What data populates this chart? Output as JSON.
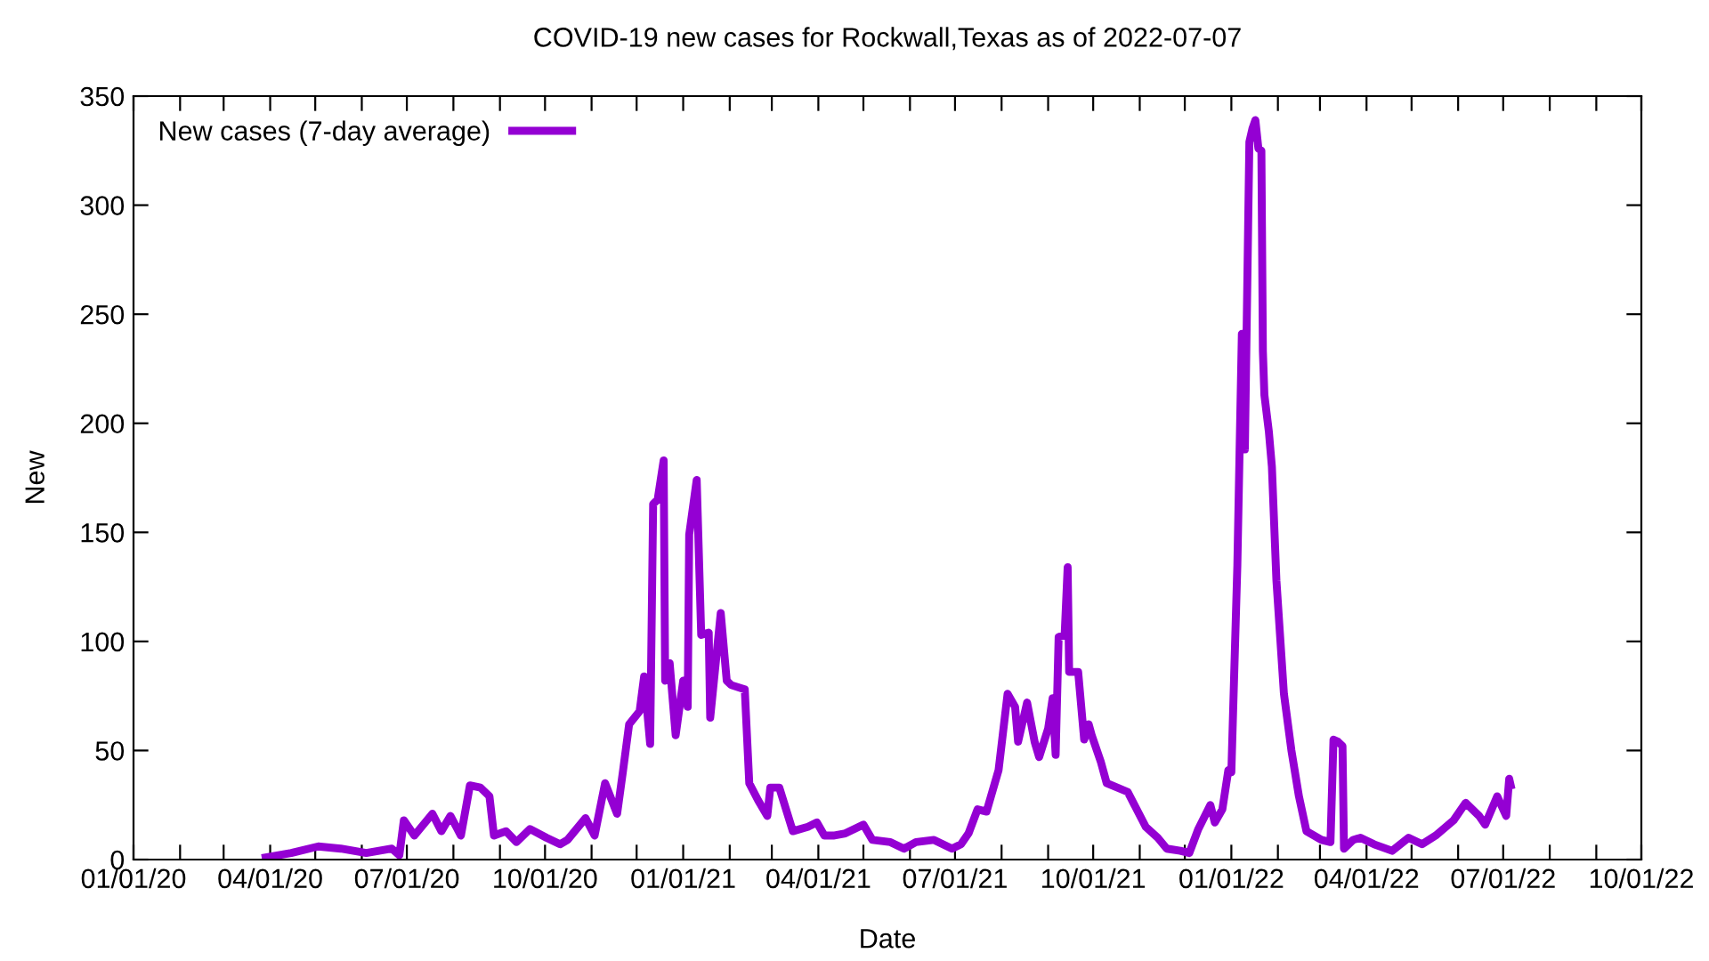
{
  "chart_data": {
    "type": "line",
    "title": "COVID-19 new cases for Rockwall,Texas as of 2022-07-07",
    "xlabel": "Date",
    "ylabel": "New",
    "x": [
      "2020-03-29",
      "2020-04-15",
      "2020-05-03",
      "2020-05-18",
      "2020-06-04",
      "2020-06-21",
      "2020-06-26",
      "2020-06-29",
      "2020-07-06",
      "2020-07-18",
      "2020-07-24",
      "2020-07-30",
      "2020-08-06",
      "2020-08-12",
      "2020-08-19",
      "2020-08-25",
      "2020-08-28",
      "2020-09-05",
      "2020-09-12",
      "2020-09-21",
      "2020-10-02",
      "2020-10-11",
      "2020-10-16",
      "2020-10-28",
      "2020-11-03",
      "2020-11-10",
      "2020-11-18",
      "2020-11-22",
      "2020-11-26",
      "2020-12-03",
      "2020-12-06",
      "2020-12-10",
      "2020-12-12",
      "2020-12-15",
      "2020-12-19",
      "2020-12-20",
      "2020-12-23",
      "2020-12-27",
      "2021-01-01",
      "2021-01-04",
      "2021-01-05",
      "2021-01-10",
      "2021-01-13",
      "2021-01-18",
      "2021-01-19",
      "2021-01-26",
      "2021-01-30",
      "2021-02-02",
      "2021-02-11",
      "2021-02-14",
      "2021-02-20",
      "2021-02-26",
      "2021-02-28",
      "2021-03-06",
      "2021-03-15",
      "2021-03-25",
      "2021-03-31",
      "2021-04-05",
      "2021-04-11",
      "2021-04-19",
      "2021-05-01",
      "2021-05-07",
      "2021-05-19",
      "2021-05-28",
      "2021-06-05",
      "2021-06-17",
      "2021-06-29",
      "2021-07-05",
      "2021-07-10",
      "2021-07-16",
      "2021-07-22",
      "2021-07-30",
      "2021-08-05",
      "2021-08-10",
      "2021-08-12",
      "2021-08-18",
      "2021-08-23",
      "2021-08-26",
      "2021-09-01",
      "2021-09-04",
      "2021-09-06",
      "2021-09-08",
      "2021-09-12",
      "2021-09-14",
      "2021-09-15",
      "2021-09-21",
      "2021-09-25",
      "2021-09-28",
      "2021-09-30",
      "2021-10-06",
      "2021-10-10",
      "2021-10-24",
      "2021-11-05",
      "2021-11-13",
      "2021-11-19",
      "2021-11-28",
      "2021-12-04",
      "2021-12-10",
      "2021-12-18",
      "2021-12-21",
      "2021-12-26",
      "2021-12-30",
      "2022-01-01",
      "2022-01-05",
      "2022-01-08",
      "2022-01-10",
      "2022-01-13",
      "2022-01-15",
      "2022-01-17",
      "2022-01-19",
      "2022-01-21",
      "2022-01-22",
      "2022-01-23",
      "2022-01-26",
      "2022-01-28",
      "2022-01-31",
      "2022-02-05",
      "2022-02-10",
      "2022-02-15",
      "2022-02-20",
      "2022-03-02",
      "2022-03-08",
      "2022-03-10",
      "2022-03-13",
      "2022-03-16",
      "2022-03-17",
      "2022-03-23",
      "2022-03-28",
      "2022-04-06",
      "2022-04-18",
      "2022-04-29",
      "2022-05-08",
      "2022-05-17",
      "2022-05-29",
      "2022-06-06",
      "2022-06-15",
      "2022-06-19",
      "2022-06-27",
      "2022-07-03",
      "2022-07-05",
      "2022-07-06"
    ],
    "series": [
      {
        "name": "New cases (7-day average)",
        "color": "#9400d3",
        "values": [
          1,
          3,
          6,
          5,
          3,
          5,
          2,
          18,
          11,
          21,
          13,
          20,
          11,
          34,
          33,
          29,
          11,
          13,
          8,
          14,
          10,
          7,
          9,
          19,
          11,
          35,
          21,
          41,
          62,
          68,
          84,
          53,
          163,
          165,
          183,
          82,
          90,
          57,
          82,
          70,
          149,
          174,
          103,
          104,
          65,
          113,
          82,
          80,
          78,
          35,
          27,
          20,
          33,
          33,
          13,
          15,
          17,
          11,
          11,
          12,
          16,
          9,
          8,
          5,
          8,
          9,
          5,
          7,
          12,
          23,
          22,
          41,
          76,
          70,
          54,
          72,
          54,
          47,
          60,
          74,
          48,
          102,
          103,
          134,
          86,
          86,
          55,
          62,
          57,
          45,
          35,
          31,
          15,
          10,
          5,
          4,
          3,
          14,
          25,
          17,
          23,
          41,
          40,
          135,
          241,
          188,
          329,
          335,
          339,
          326,
          325,
          233,
          213,
          196,
          180,
          128,
          76,
          50,
          29,
          13,
          9,
          8,
          55,
          54,
          52,
          5,
          9,
          10,
          7,
          4,
          10,
          7,
          11,
          18,
          26,
          20,
          16,
          29,
          20,
          37,
          34
        ]
      }
    ],
    "xlim": [
      "2020-01-01",
      "2022-10-01"
    ],
    "xticks": [
      {
        "value": "2020-01-01",
        "label": "01/01/20"
      },
      {
        "value": "2020-02-01",
        "label": null
      },
      {
        "value": "2020-03-01",
        "label": null
      },
      {
        "value": "2020-04-01",
        "label": "04/01/20"
      },
      {
        "value": "2020-05-01",
        "label": null
      },
      {
        "value": "2020-06-01",
        "label": null
      },
      {
        "value": "2020-07-01",
        "label": "07/01/20"
      },
      {
        "value": "2020-08-01",
        "label": null
      },
      {
        "value": "2020-09-01",
        "label": null
      },
      {
        "value": "2020-10-01",
        "label": "10/01/20"
      },
      {
        "value": "2020-11-01",
        "label": null
      },
      {
        "value": "2020-12-01",
        "label": null
      },
      {
        "value": "2021-01-01",
        "label": "01/01/21"
      },
      {
        "value": "2021-02-01",
        "label": null
      },
      {
        "value": "2021-03-01",
        "label": null
      },
      {
        "value": "2021-04-01",
        "label": "04/01/21"
      },
      {
        "value": "2021-05-01",
        "label": null
      },
      {
        "value": "2021-06-01",
        "label": null
      },
      {
        "value": "2021-07-01",
        "label": "07/01/21"
      },
      {
        "value": "2021-08-01",
        "label": null
      },
      {
        "value": "2021-09-01",
        "label": null
      },
      {
        "value": "2021-10-01",
        "label": "10/01/21"
      },
      {
        "value": "2021-11-01",
        "label": null
      },
      {
        "value": "2021-12-01",
        "label": null
      },
      {
        "value": "2022-01-01",
        "label": "01/01/22"
      },
      {
        "value": "2022-02-01",
        "label": null
      },
      {
        "value": "2022-03-01",
        "label": null
      },
      {
        "value": "2022-04-01",
        "label": "04/01/22"
      },
      {
        "value": "2022-05-01",
        "label": null
      },
      {
        "value": "2022-06-01",
        "label": null
      },
      {
        "value": "2022-07-01",
        "label": "07/01/22"
      },
      {
        "value": "2022-08-01",
        "label": null
      },
      {
        "value": "2022-09-01",
        "label": null
      },
      {
        "value": "2022-10-01",
        "label": "10/01/22"
      }
    ],
    "ylim": [
      0,
      350
    ],
    "yticks": [
      0,
      50,
      100,
      150,
      200,
      250,
      300,
      350
    ],
    "grid": false,
    "legend": "top left",
    "marker": "none",
    "line_style": "solid"
  }
}
